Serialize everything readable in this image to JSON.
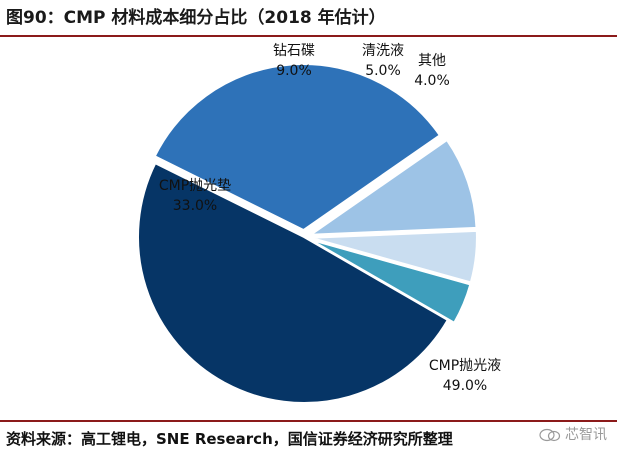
{
  "header": {
    "title": "图90：CMP 材料成本细分占比（2018 年估计）"
  },
  "chart_data": {
    "type": "pie",
    "title": "图90：CMP 材料成本细分占比（2018 年估计）",
    "slices": [
      {
        "label": "CMP抛光液",
        "value": 49.0,
        "value_label": "49.0%",
        "color": "#063566"
      },
      {
        "label": "CMP抛光垫",
        "value": 33.0,
        "value_label": "33.0%",
        "color": "#2e72b8"
      },
      {
        "label": "钻石碟",
        "value": 9.0,
        "value_label": "9.0%",
        "color": "#9dc3e6"
      },
      {
        "label": "清洗液",
        "value": 5.0,
        "value_label": "5.0%",
        "color": "#c9ddf0"
      },
      {
        "label": "其他",
        "value": 4.0,
        "value_label": "4.0%",
        "color": "#3e9ebc"
      }
    ],
    "legend": "none"
  },
  "footer": {
    "source": "资料来源：高工锂电，SNE Research，国信证券经济研究所整理",
    "watermark": "芯智讯"
  }
}
